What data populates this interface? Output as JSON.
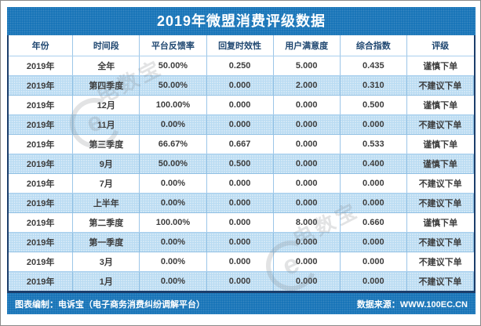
{
  "title": "2019年微盟消费评级数据",
  "chart_data": {
    "type": "table",
    "title": "2019年微盟消费评级数据",
    "columns": [
      "年份",
      "时间段",
      "平台反馈率",
      "回复时效性",
      "用户满意度",
      "综合指数",
      "评级"
    ],
    "rows": [
      [
        "2019年",
        "全年",
        "50.00%",
        "0.250",
        "5.000",
        "0.435",
        "谨慎下单"
      ],
      [
        "2019年",
        "第四季度",
        "50.00%",
        "0.000",
        "2.000",
        "0.310",
        "不建议下单"
      ],
      [
        "2019年",
        "12月",
        "100.00%",
        "0.000",
        "0.000",
        "0.500",
        "谨慎下单"
      ],
      [
        "2019年",
        "11月",
        "0.00%",
        "0.000",
        "0.000",
        "0.000",
        "不建议下单"
      ],
      [
        "2019年",
        "第三季度",
        "66.67%",
        "0.667",
        "0.000",
        "0.533",
        "谨慎下单"
      ],
      [
        "2019年",
        "9月",
        "50.00%",
        "0.500",
        "0.000",
        "0.400",
        "谨慎下单"
      ],
      [
        "2019年",
        "7月",
        "0.00%",
        "0.000",
        "0.000",
        "0.000",
        "不建议下单"
      ],
      [
        "2019年",
        "上半年",
        "0.00%",
        "0.000",
        "0.000",
        "0.000",
        "不建议下单"
      ],
      [
        "2019年",
        "第二季度",
        "100.00%",
        "0.000",
        "8.000",
        "0.660",
        "谨慎下单"
      ],
      [
        "2019年",
        "第一季度",
        "0.00%",
        "0.000",
        "0.000",
        "0.000",
        "不建议下单"
      ],
      [
        "2019年",
        "3月",
        "0.00%",
        "0.000",
        "0.000",
        "0.000",
        "不建议下单"
      ],
      [
        "2019年",
        "1月",
        "0.00%",
        "0.000",
        "0.000",
        "0.000",
        "不建议下单"
      ]
    ],
    "row_highlight_pattern": "even rows light blue",
    "legend_position": "none",
    "grid": true
  },
  "footer": {
    "credit": "图表编制：电诉宝（电子商务消费纠纷调解平台）",
    "source": "数据来源：WWW.100EC.CN"
  },
  "watermark": {
    "glyph": "e",
    "text": "电数宝"
  },
  "colors": {
    "primary_blue": "#1271b6",
    "row_highlight": "#b9dbf2",
    "panel_border": "#1c3e6b",
    "header_text": "#1e4670",
    "cell_text": "#3c3c3c"
  }
}
